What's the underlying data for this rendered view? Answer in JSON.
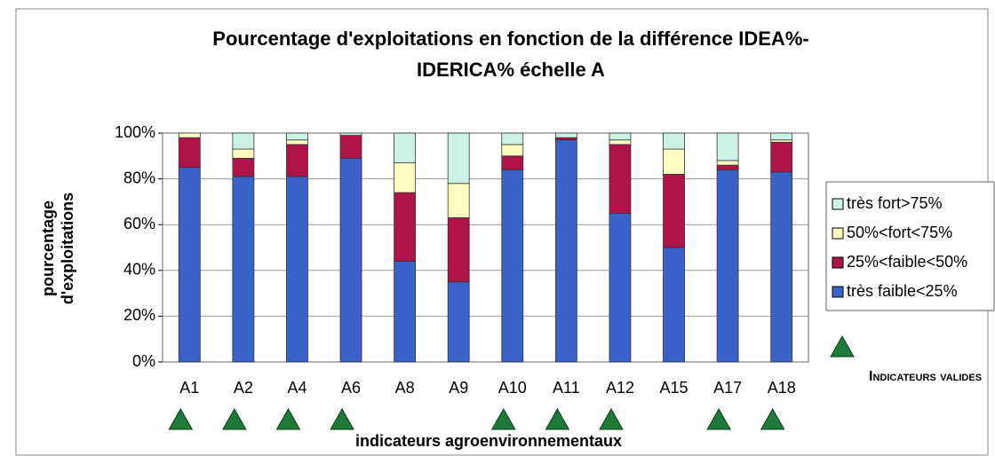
{
  "chart_data": {
    "type": "stacked_bar",
    "title": [
      "Pourcentage d'exploitations en fonction de la différence IDEA%-",
      "IDERICA% échelle A"
    ],
    "y_label": [
      "pourcentage",
      "d'exploitations"
    ],
    "x_label": "indicateurs agroenvironnementaux",
    "categories": [
      "A1",
      "A2",
      "A4",
      "A6",
      "A8",
      "A9",
      "A10",
      "A11",
      "A12",
      "A15",
      "A17",
      "A18"
    ],
    "series": [
      {
        "name": "très faible<25%",
        "color": "#3a62c8",
        "values": [
          85,
          81,
          81,
          89,
          44,
          35,
          84,
          97,
          65,
          50,
          84,
          83
        ]
      },
      {
        "name": "25%<faible<50%",
        "color": "#b0134a",
        "values": [
          13,
          8,
          14,
          10,
          30,
          28,
          6,
          1,
          30,
          32,
          2,
          13
        ]
      },
      {
        "name": "50%<fort<75%",
        "color": "#ffffc0",
        "values": [
          2,
          4,
          2,
          0,
          13,
          15,
          5,
          0,
          2,
          11,
          2,
          1
        ]
      },
      {
        "name": "très fort>75%",
        "color": "#ccf2e6",
        "values": [
          0,
          7,
          3,
          1,
          13,
          22,
          5,
          2,
          3,
          7,
          12,
          3
        ]
      }
    ],
    "ylim": [
      0,
      100
    ],
    "yticks": [
      {
        "value": 0,
        "label": "0%"
      },
      {
        "value": 20,
        "label": "20%"
      },
      {
        "value": 40,
        "label": "40%"
      },
      {
        "value": 60,
        "label": "60%"
      },
      {
        "value": 80,
        "label": "80%"
      },
      {
        "value": 100,
        "label": "100%"
      }
    ],
    "grid": true,
    "legend": "right",
    "valid": [
      true,
      true,
      true,
      true,
      false,
      false,
      true,
      true,
      true,
      false,
      true,
      true
    ],
    "valid_marker_color": "#1e7a3a",
    "valid_label": "Indicateurs valides"
  }
}
